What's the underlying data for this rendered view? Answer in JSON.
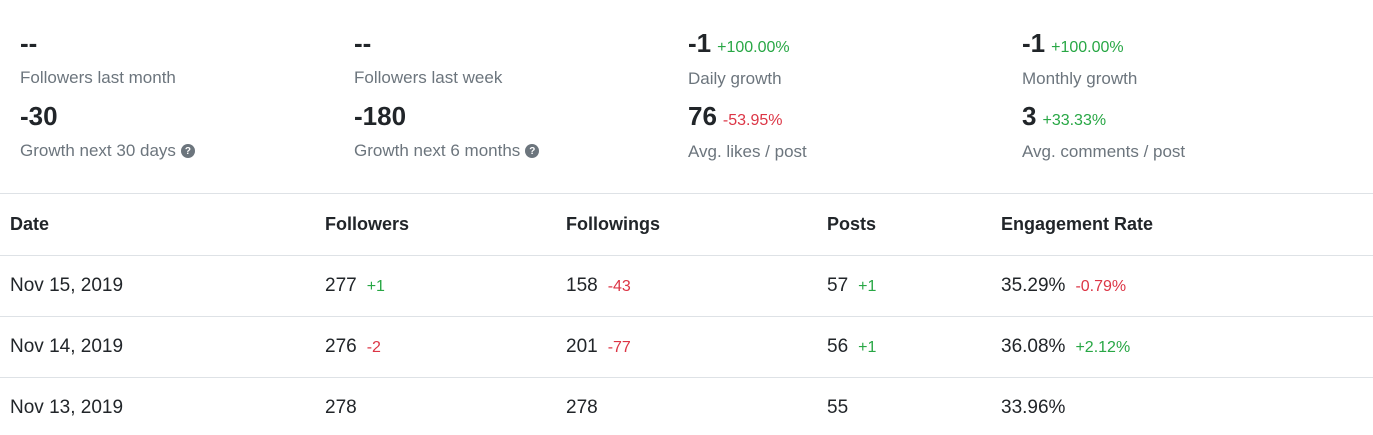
{
  "stats": [
    {
      "value": "--",
      "delta": "",
      "delta_type": "",
      "label": "Followers last month",
      "help": false
    },
    {
      "value": "--",
      "delta": "",
      "delta_type": "",
      "label": "Followers last week",
      "help": false
    },
    {
      "value": "-1",
      "delta": "+100.00%",
      "delta_type": "pos",
      "label": "Daily growth",
      "help": false
    },
    {
      "value": "-1",
      "delta": "+100.00%",
      "delta_type": "pos",
      "label": "Monthly growth",
      "help": false
    },
    {
      "value": "-30",
      "delta": "",
      "delta_type": "",
      "label": "Growth next 30 days",
      "help": true
    },
    {
      "value": "-180",
      "delta": "",
      "delta_type": "",
      "label": "Growth next 6 months",
      "help": true
    },
    {
      "value": "76",
      "delta": "-53.95%",
      "delta_type": "neg",
      "label": "Avg. likes / post",
      "help": false
    },
    {
      "value": "3",
      "delta": "+33.33%",
      "delta_type": "pos",
      "label": "Avg. comments / post",
      "help": false
    }
  ],
  "table": {
    "headers": [
      "Date",
      "Followers",
      "Followings",
      "Posts",
      "Engagement Rate"
    ],
    "rows": [
      {
        "date": "Nov 15, 2019",
        "followers": "277",
        "followers_delta": "+1",
        "followers_delta_type": "pos",
        "followings": "158",
        "followings_delta": "-43",
        "followings_delta_type": "neg",
        "posts": "57",
        "posts_delta": "+1",
        "posts_delta_type": "pos",
        "engagement": "35.29%",
        "engagement_delta": "-0.79%",
        "engagement_delta_type": "neg"
      },
      {
        "date": "Nov 14, 2019",
        "followers": "276",
        "followers_delta": "-2",
        "followers_delta_type": "neg",
        "followings": "201",
        "followings_delta": "-77",
        "followings_delta_type": "neg",
        "posts": "56",
        "posts_delta": "+1",
        "posts_delta_type": "pos",
        "engagement": "36.08%",
        "engagement_delta": "+2.12%",
        "engagement_delta_type": "pos"
      },
      {
        "date": "Nov 13, 2019",
        "followers": "278",
        "followers_delta": "",
        "followers_delta_type": "",
        "followings": "278",
        "followings_delta": "",
        "followings_delta_type": "",
        "posts": "55",
        "posts_delta": "",
        "posts_delta_type": "",
        "engagement": "33.96%",
        "engagement_delta": "",
        "engagement_delta_type": ""
      }
    ]
  },
  "colors": {
    "positive": "#28a745",
    "negative": "#dc3545",
    "muted": "#6c757d",
    "border": "#dee2e6"
  },
  "icons": {
    "help": "question-circle-icon"
  }
}
